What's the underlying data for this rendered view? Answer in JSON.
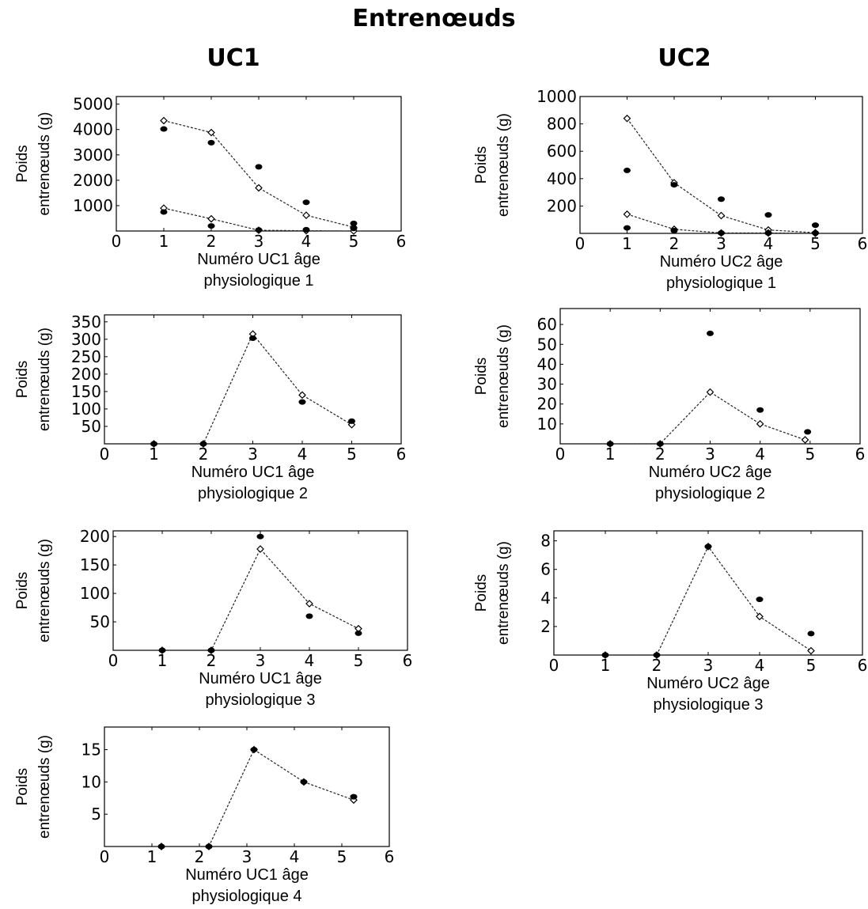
{
  "title": "Entrenœuds",
  "columns": [
    "UC1",
    "UC2"
  ],
  "chart_data": [
    {
      "id": "uc1-age1",
      "type": "scatter",
      "ylabel": [
        "Poids",
        "entrenœuds (g)"
      ],
      "xlabel": [
        "Numéro UC1 âge",
        "physiologique 1"
      ],
      "xlim": [
        0,
        6
      ],
      "ylim": [
        0,
        5300
      ],
      "xticks": [
        0,
        1,
        2,
        3,
        4,
        5,
        6
      ],
      "yticks": [
        1000,
        2000,
        3000,
        4000,
        5000
      ],
      "grid": false,
      "series": [
        {
          "marker": "diamond-line",
          "x": [
            1,
            2,
            3,
            4,
            5
          ],
          "y": [
            4350,
            3880,
            1700,
            620,
            150
          ]
        },
        {
          "marker": "diamond-line",
          "x": [
            1,
            2,
            3,
            4,
            5
          ],
          "y": [
            900,
            480,
            30,
            10,
            0
          ]
        },
        {
          "marker": "dot",
          "x": [
            1,
            2,
            3,
            4,
            5
          ],
          "y": [
            4020,
            3480,
            2530,
            1130,
            300
          ]
        },
        {
          "marker": "dot",
          "x": [
            1,
            2,
            3,
            4,
            5
          ],
          "y": [
            750,
            200,
            40,
            50,
            100
          ]
        }
      ]
    },
    {
      "id": "uc2-age1",
      "type": "scatter",
      "ylabel": [
        "Poids",
        "entrenœuds (g)"
      ],
      "xlabel": [
        "Numéro UC2 âge",
        "physiologique 1"
      ],
      "xlim": [
        0,
        6
      ],
      "ylim": [
        0,
        1000
      ],
      "xticks": [
        0,
        1,
        2,
        3,
        4,
        5,
        6
      ],
      "yticks": [
        200,
        400,
        600,
        800,
        1000
      ],
      "grid": false,
      "series": [
        {
          "marker": "diamond-line",
          "x": [
            1,
            2,
            3,
            4,
            5
          ],
          "y": [
            840,
            370,
            130,
            25,
            5
          ]
        },
        {
          "marker": "diamond-line",
          "x": [
            1,
            2,
            3,
            4,
            5
          ],
          "y": [
            140,
            30,
            3,
            3,
            0
          ]
        },
        {
          "marker": "dot",
          "x": [
            1,
            2,
            3,
            4,
            5
          ],
          "y": [
            460,
            355,
            250,
            135,
            60
          ]
        },
        {
          "marker": "dot",
          "x": [
            1,
            2,
            3,
            4,
            5
          ],
          "y": [
            40,
            20,
            3,
            3,
            3
          ]
        }
      ]
    },
    {
      "id": "uc1-age2",
      "type": "scatter",
      "ylabel": [
        "Poids",
        "entrenœuds (g)"
      ],
      "xlabel": [
        "Numéro UC1 âge",
        "physiologique 2"
      ],
      "xlim": [
        0,
        6
      ],
      "ylim": [
        0,
        370
      ],
      "xticks": [
        0,
        1,
        2,
        3,
        4,
        5,
        6
      ],
      "yticks": [
        50,
        100,
        150,
        200,
        250,
        300,
        350
      ],
      "grid": false,
      "series": [
        {
          "marker": "diamond-line",
          "x": [
            1,
            2,
            3,
            4,
            5
          ],
          "y": [
            0,
            0,
            315,
            140,
            55
          ]
        },
        {
          "marker": "dot",
          "x": [
            1,
            2,
            3,
            4,
            5
          ],
          "y": [
            0,
            0,
            303,
            120,
            65
          ]
        }
      ]
    },
    {
      "id": "uc2-age2",
      "type": "scatter",
      "ylabel": [
        "Poids",
        "entrenœuds (g)"
      ],
      "xlabel": [
        "Numéro UC2 âge",
        "physiologique 2"
      ],
      "xlim": [
        0,
        6
      ],
      "ylim": [
        0,
        68
      ],
      "xticks": [
        0,
        1,
        2,
        3,
        4,
        5,
        6
      ],
      "yticks": [
        10,
        20,
        30,
        40,
        50,
        60
      ],
      "grid": false,
      "series": [
        {
          "marker": "diamond-line",
          "x": [
            1,
            2,
            3,
            4,
            4.9
          ],
          "y": [
            0,
            0,
            26,
            10,
            2
          ]
        },
        {
          "marker": "dot",
          "x": [
            1,
            2,
            3,
            4,
            4.95
          ],
          "y": [
            0,
            0,
            55.5,
            17,
            6
          ]
        }
      ]
    },
    {
      "id": "uc1-age3",
      "type": "scatter",
      "ylabel": [
        "Poids",
        "entrenœuds (g)"
      ],
      "xlabel": [
        "Numéro UC1 âge",
        "physiologique 3"
      ],
      "xlim": [
        0,
        6
      ],
      "ylim": [
        0,
        210
      ],
      "xticks": [
        0,
        1,
        2,
        3,
        4,
        5,
        6
      ],
      "yticks": [
        50,
        100,
        150,
        200
      ],
      "grid": false,
      "series": [
        {
          "marker": "diamond-line",
          "x": [
            1,
            2,
            3,
            4,
            5
          ],
          "y": [
            0,
            0,
            178,
            82,
            38
          ]
        },
        {
          "marker": "dot",
          "x": [
            1,
            2,
            3,
            4,
            5
          ],
          "y": [
            0,
            0,
            200,
            60,
            30
          ]
        }
      ]
    },
    {
      "id": "uc2-age3",
      "type": "scatter",
      "ylabel": [
        "Poids",
        "entrenœuds (g)"
      ],
      "xlabel": [
        "Numéro UC2 âge",
        "physiologique 3"
      ],
      "xlim": [
        0,
        6
      ],
      "ylim": [
        0,
        8.7
      ],
      "xticks": [
        0,
        1,
        2,
        3,
        4,
        5,
        6
      ],
      "yticks": [
        2,
        4,
        6,
        8
      ],
      "grid": false,
      "series": [
        {
          "marker": "diamond-line",
          "x": [
            1,
            2,
            3,
            4,
            5
          ],
          "y": [
            0,
            0,
            7.6,
            2.7,
            0.3
          ]
        },
        {
          "marker": "dot",
          "x": [
            1,
            2,
            3,
            4,
            5
          ],
          "y": [
            0,
            0,
            7.6,
            3.9,
            1.5
          ]
        }
      ]
    },
    {
      "id": "uc1-age4",
      "type": "scatter",
      "ylabel": [
        "Poids",
        "entrenœuds (g)"
      ],
      "xlabel": [
        "Numéro UC1 âge",
        "physiologique 4"
      ],
      "xlim": [
        0,
        6
      ],
      "ylim": [
        0,
        18.5
      ],
      "xticks": [
        0,
        1,
        2,
        3,
        4,
        5,
        6
      ],
      "yticks": [
        5,
        10,
        15
      ],
      "grid": false,
      "series": [
        {
          "marker": "diamond-line",
          "x": [
            1.2,
            2.2,
            3.15,
            4.2,
            5.25
          ],
          "y": [
            0,
            0,
            15,
            10,
            7.2
          ]
        },
        {
          "marker": "dot",
          "x": [
            1.2,
            2.2,
            3.15,
            4.2,
            5.25
          ],
          "y": [
            0,
            0,
            15,
            10,
            7.7
          ]
        }
      ]
    }
  ]
}
